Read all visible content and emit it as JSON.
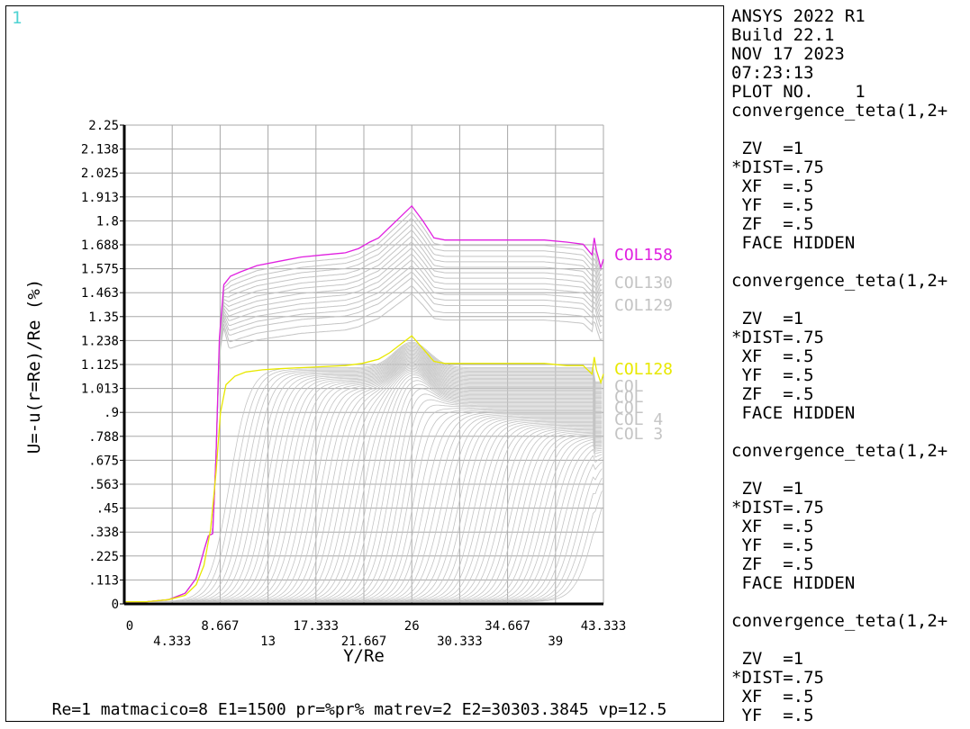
{
  "window_number": "1",
  "footer": "Re=1 matmacico=8 E1=1500 pr=%pr% matrev=2 E2=30303.3845 vp=12.5",
  "side_panel": [
    "ANSYS 2022 R1",
    "Build 22.1",
    "NOV 17 2023",
    "07:23:13",
    "PLOT NO.    1",
    "convergence_teta(1,2+",
    "",
    " ZV  =1",
    "*DIST=.75",
    " XF  =.5",
    " YF  =.5",
    " ZF  =.5",
    " FACE HIDDEN",
    "",
    "convergence_teta(1,2+",
    "",
    " ZV  =1",
    "*DIST=.75",
    " XF  =.5",
    " YF  =.5",
    " ZF  =.5",
    " FACE HIDDEN",
    "",
    "convergence_teta(1,2+",
    "",
    " ZV  =1",
    "*DIST=.75",
    " XF  =.5",
    " YF  =.5",
    " ZF  =.5",
    " FACE HIDDEN",
    "",
    "convergence_teta(1,2+",
    "",
    " ZV  =1",
    "*DIST=.75",
    " XF  =.5",
    " YF  =.5"
  ],
  "chart_data": {
    "type": "line",
    "xlabel": "Y/Re",
    "ylabel": "U=-u(r=Re)/Re (%)",
    "xlim": [
      0,
      43.333
    ],
    "ylim": [
      0,
      2.25
    ],
    "grid": true,
    "x_ticks": [
      "0",
      "4.333",
      "8.667",
      "13",
      "17.333",
      "21.667",
      "26",
      "30.333",
      "34.667",
      "39",
      "43.333"
    ],
    "y_ticks": [
      "0",
      ".113",
      ".225",
      ".338",
      ".45",
      ".563",
      ".675",
      ".788",
      ".9",
      "1.013",
      "1.125",
      "1.238",
      "1.35",
      "1.463",
      "1.575",
      "1.688",
      "1.8",
      "1.913",
      "2.025",
      "2.138",
      "2.25"
    ],
    "colors": {
      "highlight_upper": "#e020e0",
      "highlight_lower": "#e8e800",
      "family": "#c4c4c4",
      "axis": "#000000",
      "grid": "#a8a8a8"
    },
    "series": [
      {
        "name": "COL158",
        "color": "#e020e0",
        "x": [
          0,
          2,
          4,
          5.5,
          6.5,
          7.2,
          7.6,
          8.0,
          8.3,
          8.6,
          9.0,
          9.6,
          10.5,
          12,
          14,
          16,
          18,
          20,
          21.2,
          22.2,
          23,
          24,
          25,
          26,
          27,
          28,
          29,
          30,
          32,
          34,
          36,
          38,
          40,
          41.5,
          42.3,
          42.5,
          42.7,
          43.1,
          43.333
        ],
        "y": [
          0.01,
          0.01,
          0.02,
          0.05,
          0.12,
          0.25,
          0.32,
          0.33,
          0.7,
          1.25,
          1.5,
          1.54,
          1.56,
          1.59,
          1.61,
          1.63,
          1.64,
          1.65,
          1.67,
          1.7,
          1.72,
          1.77,
          1.82,
          1.87,
          1.8,
          1.72,
          1.71,
          1.71,
          1.71,
          1.71,
          1.71,
          1.71,
          1.7,
          1.69,
          1.64,
          1.72,
          1.66,
          1.58,
          1.62
        ]
      },
      {
        "name": "COL128",
        "color": "#e8e800",
        "x": [
          0,
          2,
          4,
          5.5,
          6.5,
          7.2,
          7.8,
          8.3,
          8.7,
          9.2,
          10,
          11,
          12.5,
          14,
          16,
          18,
          20,
          21.5,
          23,
          24,
          25,
          26,
          27,
          28,
          29,
          30,
          32,
          34,
          36,
          38,
          40,
          41.5,
          42.3,
          42.5,
          42.7,
          43.1,
          43.333
        ],
        "y": [
          0.01,
          0.01,
          0.02,
          0.04,
          0.09,
          0.18,
          0.35,
          0.62,
          0.9,
          1.03,
          1.07,
          1.09,
          1.1,
          1.105,
          1.11,
          1.115,
          1.12,
          1.13,
          1.15,
          1.18,
          1.22,
          1.26,
          1.2,
          1.14,
          1.13,
          1.13,
          1.13,
          1.13,
          1.13,
          1.13,
          1.12,
          1.12,
          1.08,
          1.16,
          1.1,
          1.04,
          1.08
        ]
      }
    ],
    "family_upper_labels": [
      "COL130",
      "COL129"
    ],
    "family_lower_labels": [
      "COL",
      "COL",
      "COL",
      "COL  4",
      "COL  3"
    ]
  }
}
